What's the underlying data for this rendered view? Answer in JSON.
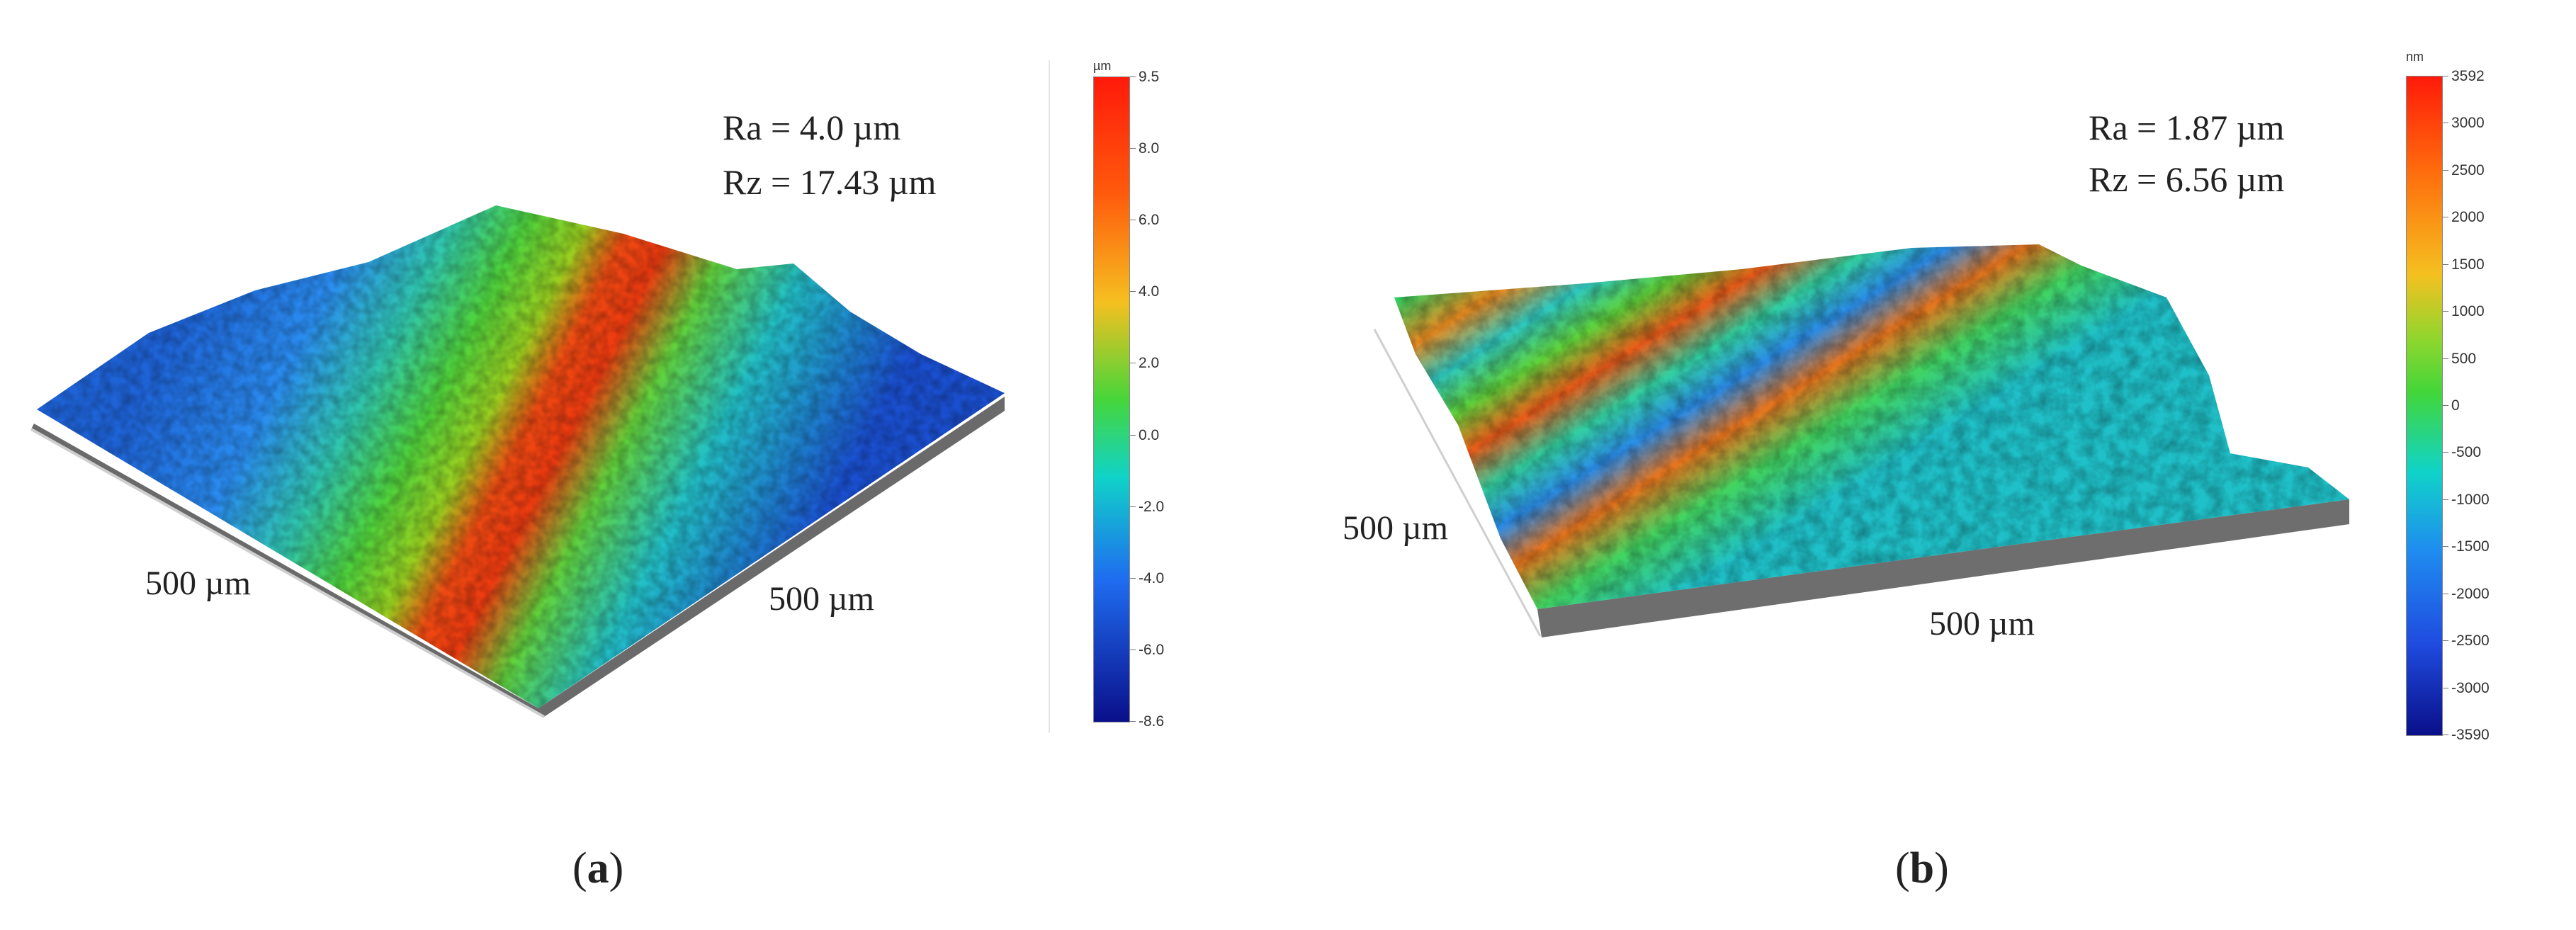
{
  "panels": [
    {
      "id": "a",
      "caption_letter": "a",
      "stats": {
        "ra": "Ra = 4.0 µm",
        "rz": "Rz = 17.43 µm"
      },
      "dims": {
        "left": "500 µm",
        "right": "500 µm"
      },
      "colorbar": {
        "unit": "µm",
        "ticks": [
          "9.5",
          "8.0",
          "6.0",
          "4.0",
          "2.0",
          "0.0",
          "-2.0",
          "-4.0",
          "-6.0",
          "-8.6"
        ]
      }
    },
    {
      "id": "b",
      "caption_letter": "b",
      "stats": {
        "ra": "Ra = 1.87 µm",
        "rz": "Rz = 6.56 µm"
      },
      "dims": {
        "left": "500 µm",
        "bottom": "500 µm"
      },
      "colorbar": {
        "unit": "nm",
        "ticks": [
          "3592",
          "3000",
          "2500",
          "2000",
          "1500",
          "1000",
          "500",
          "0",
          "-500",
          "-1000",
          "-1500",
          "-2000",
          "-2500",
          "-3000",
          "-3590"
        ]
      }
    }
  ],
  "colors": {
    "scale": [
      "#ff1a0a",
      "#ff7a10",
      "#f5d020",
      "#46d63a",
      "#10d3c8",
      "#1f6cf0",
      "#0a0f8a"
    ],
    "base": "#6e6e6e"
  }
}
